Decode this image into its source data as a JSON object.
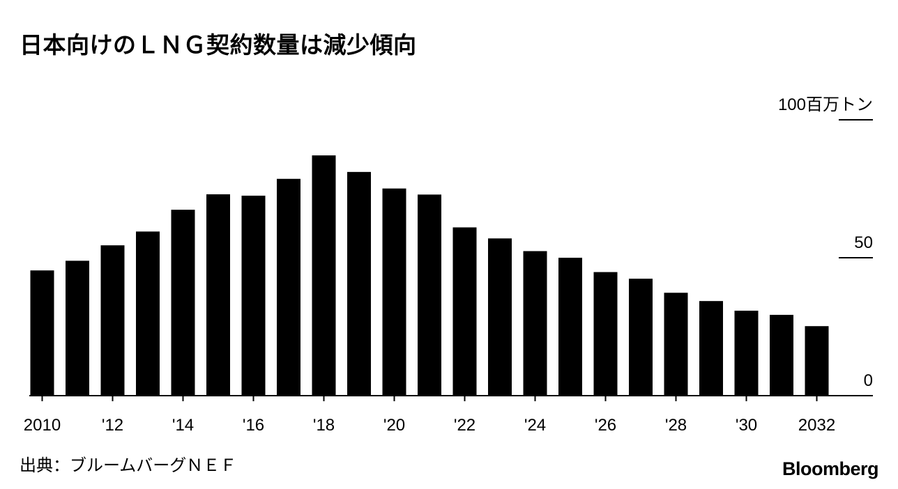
{
  "title": "日本向けのＬＮＧ契約数量は減少傾向",
  "source": "出典：ブルームバーグＮＥＦ",
  "brand": "Bloomberg",
  "colors": {
    "bar": "#000000",
    "axis": "#000000",
    "background": "#ffffff"
  },
  "chart_data": {
    "type": "bar",
    "categories": [
      "2010",
      "2011",
      "2012",
      "2013",
      "2014",
      "2015",
      "2016",
      "2017",
      "2018",
      "2019",
      "2020",
      "2021",
      "2022",
      "2023",
      "2024",
      "2025",
      "2026",
      "2027",
      "2028",
      "2029",
      "2030",
      "2031",
      "2032"
    ],
    "values": [
      45.4,
      48.9,
      54.5,
      59.5,
      67.4,
      73.0,
      72.5,
      78.6,
      87.1,
      81.1,
      75.1,
      72.9,
      61.0,
      57.0,
      52.4,
      50.0,
      44.8,
      42.4,
      37.3,
      34.3,
      30.8,
      29.3,
      25.2
    ],
    "x_tick_labels": [
      "2010",
      "'12",
      "'14",
      "'16",
      "'18",
      "'20",
      "'22",
      "'24",
      "'26",
      "'28",
      "'30",
      "2032"
    ],
    "y_ticks": [
      0,
      50,
      100
    ],
    "y_tick_labels": [
      "0",
      "50",
      "100"
    ],
    "unit_label": "百万トン",
    "ylim": [
      0,
      100
    ],
    "y_axis_side": "right",
    "grid": false,
    "legend": "none"
  }
}
